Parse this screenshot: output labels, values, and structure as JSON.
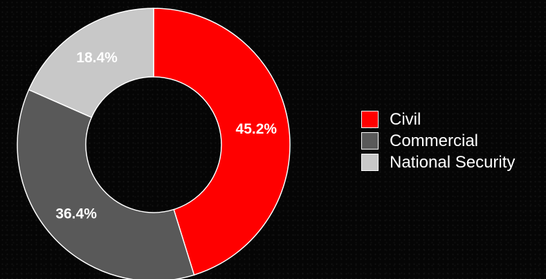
{
  "chart_data": {
    "type": "pie",
    "variant": "donut",
    "categories": [
      "Civil",
      "Commercial",
      "National Security"
    ],
    "values": [
      45.2,
      36.4,
      18.4
    ],
    "labels": [
      "45.2%",
      "36.4%",
      "18.4%"
    ],
    "colors": [
      "#ff0000",
      "#595959",
      "#c8c8c8"
    ],
    "title": "",
    "legend_position": "right"
  }
}
